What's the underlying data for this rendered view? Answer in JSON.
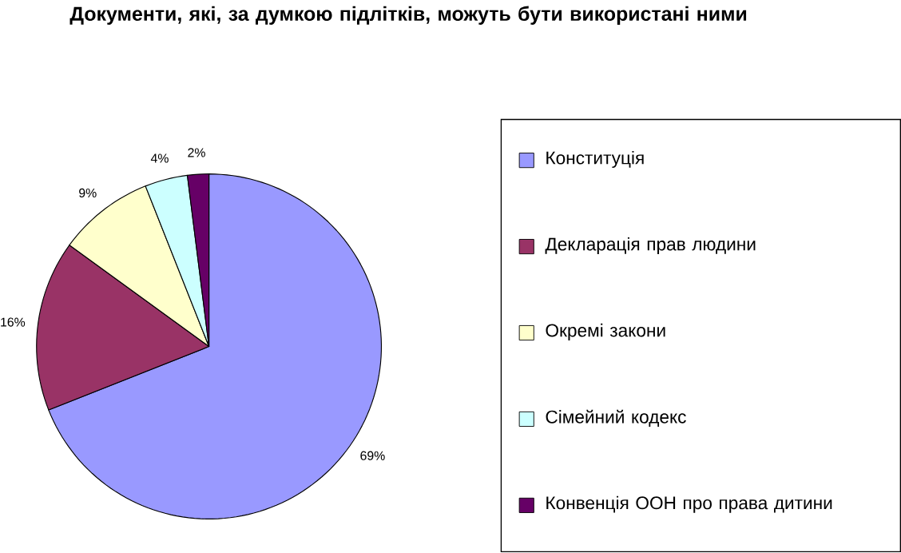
{
  "chart_data": {
    "type": "pie",
    "title": "Документи, які, за думкою підлітків, можуть бути використані ними",
    "categories": [
      "Конституція",
      "Декларація прав людини",
      "Окремі закони",
      "Сімейний кодекс",
      "Конвенція ООН про права дитини"
    ],
    "values": [
      69,
      16,
      9,
      4,
      2
    ],
    "colors": [
      "#9999ff",
      "#993366",
      "#ffffcc",
      "#ccffff",
      "#660066"
    ],
    "value_labels": [
      "69%",
      "16%",
      "9%",
      "4%",
      "2%"
    ],
    "legend": "right"
  }
}
